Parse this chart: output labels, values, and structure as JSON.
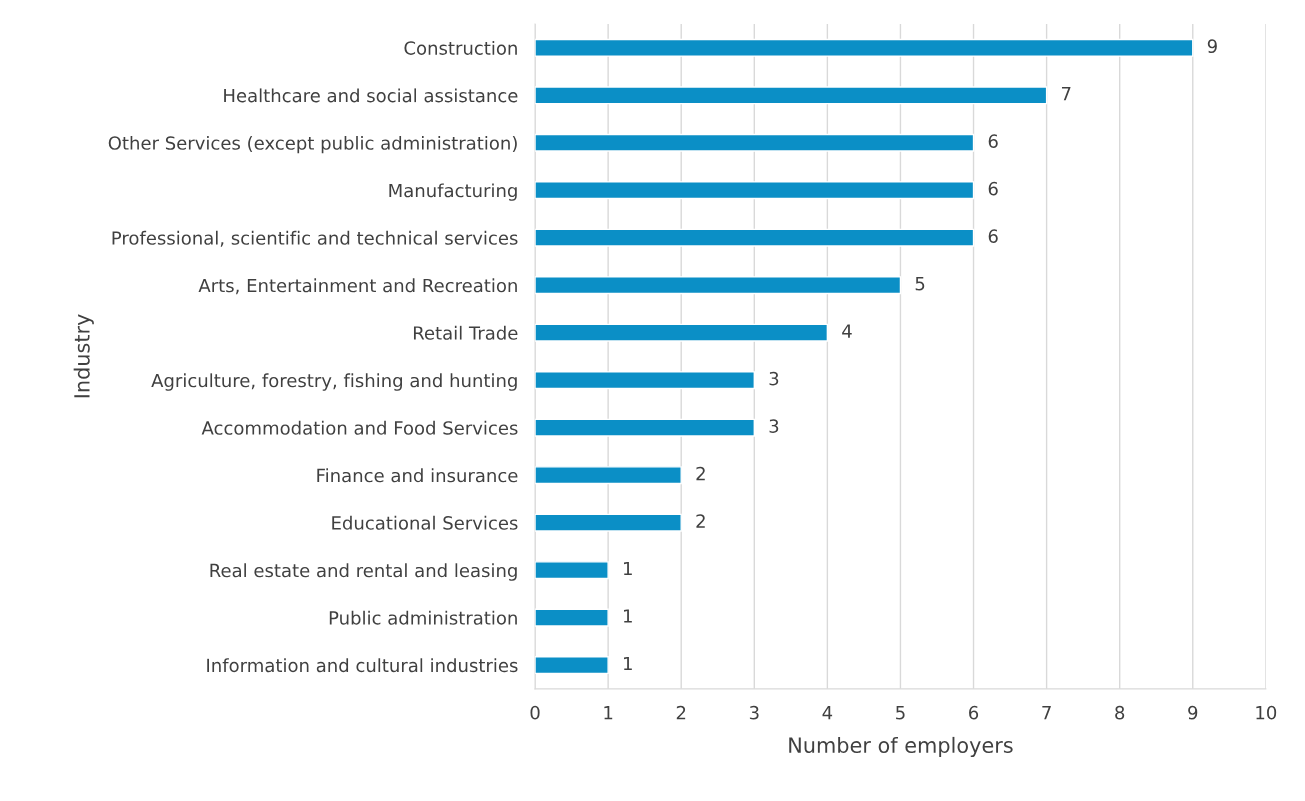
{
  "chart_data": {
    "type": "bar",
    "orientation": "horizontal",
    "xlabel": "Number of employers",
    "ylabel": "Industry",
    "categories": [
      "Construction",
      "Healthcare and social assistance",
      "Other Services (except public administration)",
      "Manufacturing",
      "Professional, scientific and technical services",
      "Arts, Entertainment and Recreation",
      "Retail Trade",
      "Agriculture, forestry, fishing and hunting",
      "Accommodation and Food Services",
      "Finance and insurance",
      "Educational Services",
      "Real estate and rental and leasing",
      "Public administration",
      "Information and cultural industries"
    ],
    "values": [
      9,
      7,
      6,
      6,
      6,
      5,
      4,
      3,
      3,
      2,
      2,
      1,
      1,
      1
    ],
    "color": "#0b8fc6",
    "xlim": [
      0,
      10
    ],
    "xticks": [
      0,
      1,
      2,
      3,
      4,
      5,
      6,
      7,
      8,
      9,
      10
    ],
    "grid": "x",
    "data_labels": true
  }
}
